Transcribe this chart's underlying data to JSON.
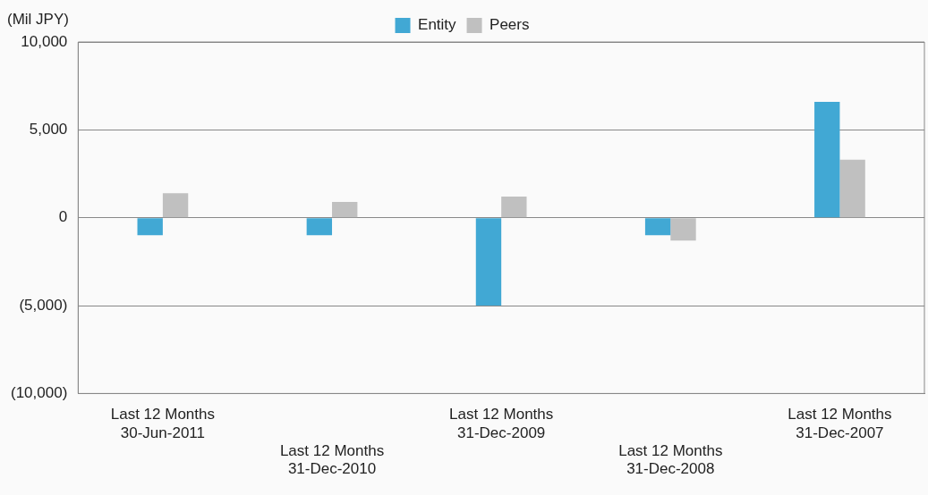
{
  "chart_data": {
    "type": "bar",
    "ylabel": "(Mil JPY)",
    "categories": [
      "Last 12 Months\n30-Jun-2011",
      "Last 12 Months\n31-Dec-2010",
      "Last 12 Months\n31-Dec-2009",
      "Last 12 Months\n31-Dec-2008",
      "Last 12 Months\n31-Dec-2007"
    ],
    "series": [
      {
        "name": "Entity",
        "color": "#41a8d4",
        "values": [
          -1000,
          -1000,
          -5000,
          -1000,
          6600
        ]
      },
      {
        "name": "Peers",
        "color": "#c0c0c0",
        "values": [
          1400,
          900,
          1200,
          -1300,
          3300
        ]
      }
    ],
    "ylim": [
      -10000,
      10000
    ],
    "yticks": [
      {
        "value": -10000,
        "label": "(10,000)"
      },
      {
        "value": -5000,
        "label": "(5,000)"
      },
      0,
      {
        "value": 5000,
        "label": "5,000"
      },
      {
        "value": 10000,
        "label": "10,000"
      }
    ],
    "grid": "y",
    "legend": "top"
  }
}
